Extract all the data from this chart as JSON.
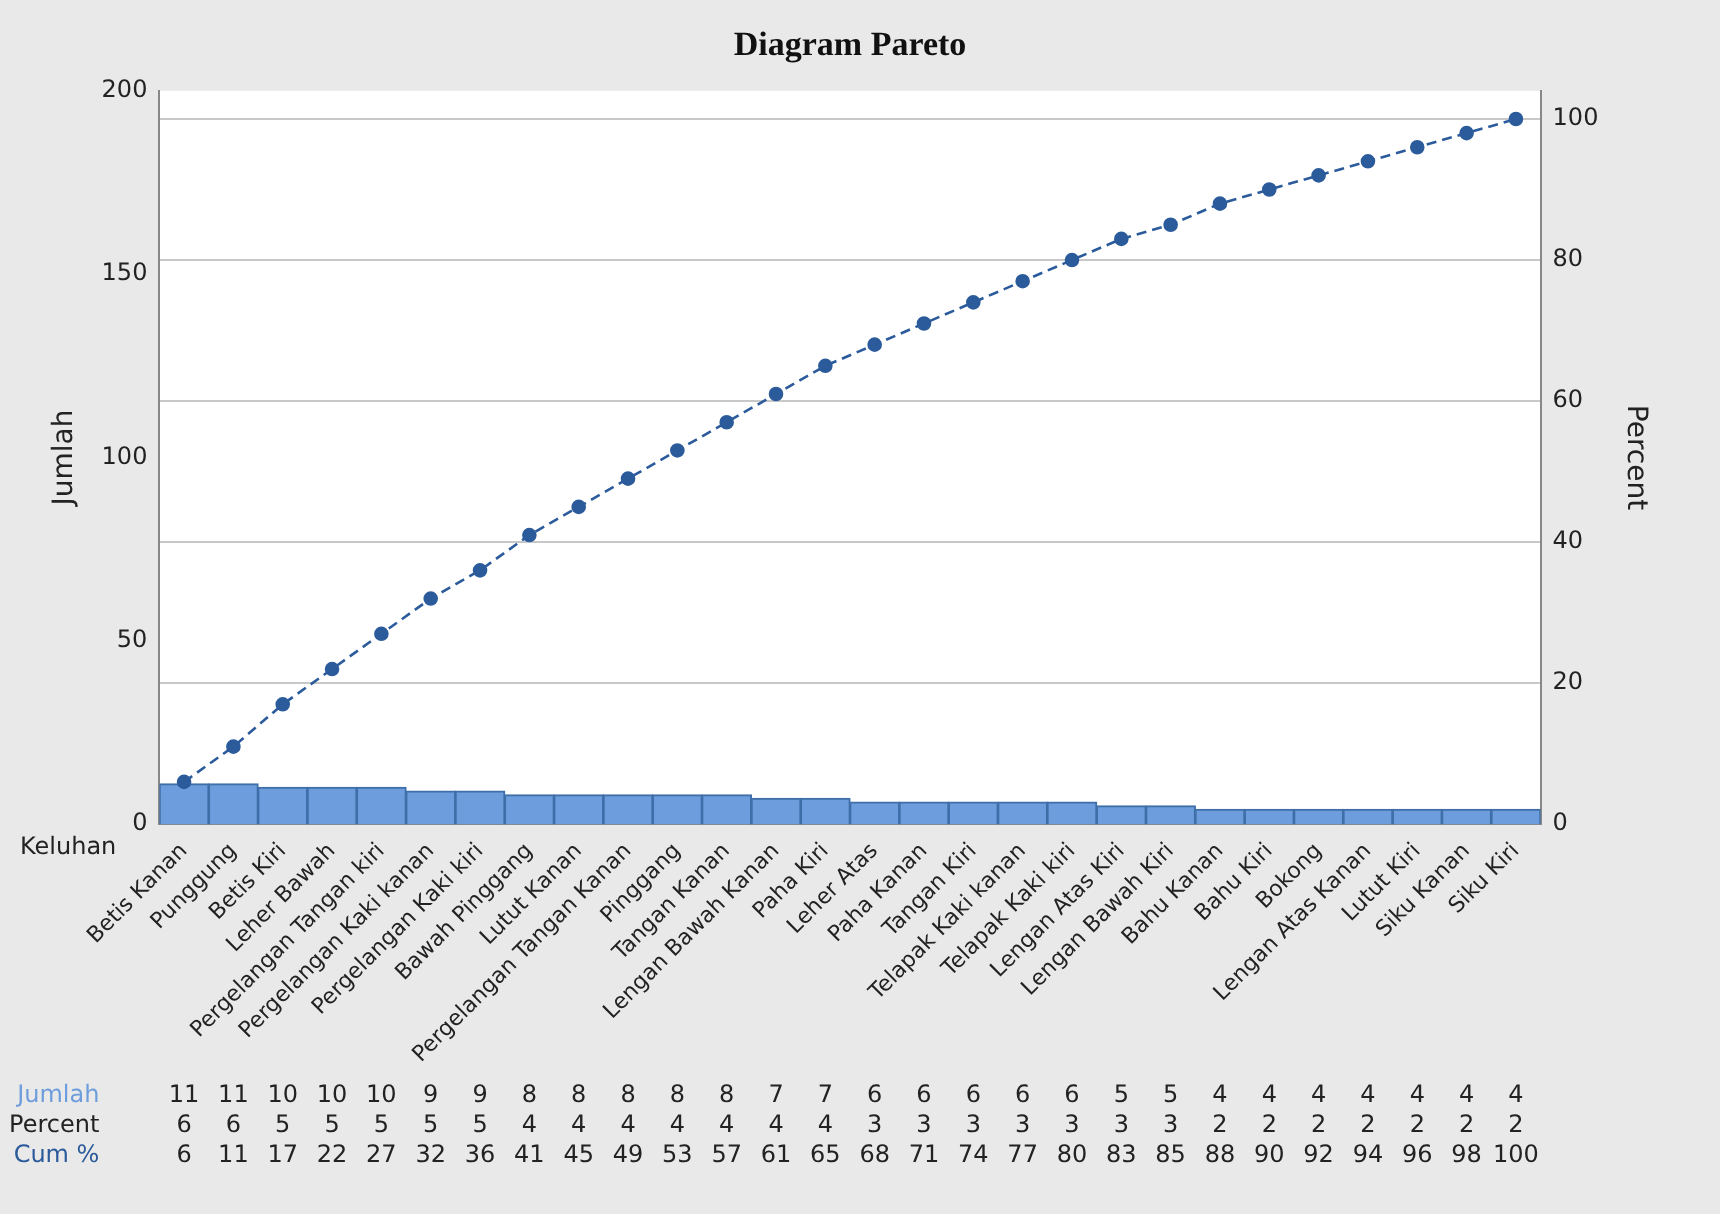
{
  "chart_data": {
    "type": "bar",
    "title": "Diagram Pareto",
    "xlabel": "Keluhan",
    "ylabel": "Jumlah",
    "y2label": "Percent",
    "categories": [
      "Betis Kanan",
      "Punggung",
      "Betis Kiri",
      "Leher Bawah",
      "Pergelangan Tangan kiri",
      "Pergelangan Kaki kanan",
      "Pergelangan Kaki kiri",
      "Bawah Pinggang",
      "Lutut Kanan",
      "Pergelangan Tangan Kanan",
      "Pinggang",
      "Tangan Kanan",
      "Lengan Bawah Kanan",
      "Paha Kiri",
      "Leher Atas",
      "Paha Kanan",
      "Tangan Kiri",
      "Telapak Kaki kanan",
      "Telapak Kaki kiri",
      "Lengan Atas Kiri",
      "Lengan Bawah Kiri",
      "Bahu Kanan",
      "Bahu Kiri",
      "Bokong",
      "Lengan Atas Kanan",
      "Lutut Kiri",
      "Siku Kanan",
      "Siku Kiri"
    ],
    "series": [
      {
        "name": "Jumlah",
        "color": "#6d9ddc",
        "values": [
          11,
          11,
          10,
          10,
          10,
          9,
          9,
          8,
          8,
          8,
          8,
          8,
          7,
          7,
          6,
          6,
          6,
          6,
          6,
          5,
          5,
          4,
          4,
          4,
          4,
          4,
          4,
          4
        ]
      },
      {
        "name": "Cum %",
        "type": "line",
        "axis": "y2",
        "color": "#2b5b9b",
        "marker": "circle",
        "line_style": "dashed",
        "values": [
          6,
          11,
          17,
          22,
          27,
          32,
          36,
          41,
          45,
          49,
          53,
          57,
          61,
          65,
          68,
          71,
          74,
          77,
          80,
          83,
          85,
          88,
          90,
          92,
          94,
          96,
          98,
          100
        ]
      }
    ],
    "ylim": [
      0,
      200
    ],
    "yticks": [
      0,
      50,
      100,
      150,
      200
    ],
    "y2lim": [
      0,
      104
    ],
    "y2ticks": [
      0,
      20,
      40,
      60,
      80,
      100
    ],
    "grid": "y2",
    "legend": false,
    "data_labels": true,
    "annotations": [
      "Percent",
      "6",
      "6",
      "5",
      "5",
      "5",
      "5",
      "5",
      "4",
      "4",
      "4",
      "4",
      "4",
      "4",
      "4",
      "3",
      "3",
      "3",
      "3",
      "3",
      "3",
      "3",
      "2",
      "2",
      "2",
      "2",
      "2",
      "2",
      "2"
    ]
  }
}
